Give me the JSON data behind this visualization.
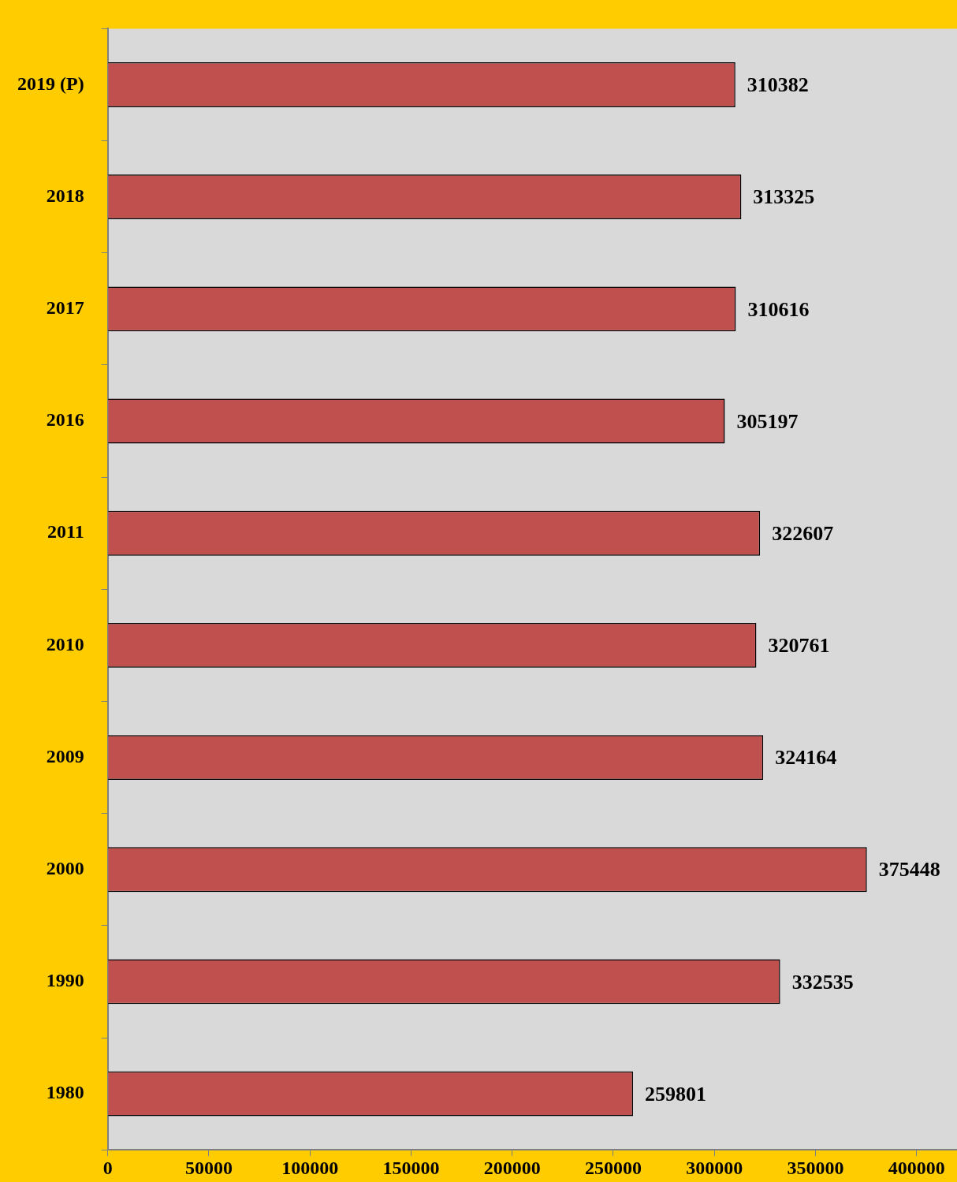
{
  "chart_data": {
    "type": "bar",
    "orientation": "horizontal",
    "categories": [
      "2019 (P)",
      "2018",
      "2017",
      "2016",
      "2011",
      "2010",
      "2009",
      "2000",
      "1990",
      "1980"
    ],
    "values": [
      310382,
      313325,
      310616,
      305197,
      322607,
      320761,
      324164,
      375448,
      332535,
      259801
    ],
    "color": "#c0504d",
    "xlim": [
      0,
      420000
    ],
    "xticks": [
      0,
      50000,
      100000,
      150000,
      200000,
      250000,
      300000,
      350000,
      400000
    ],
    "data_labels": true,
    "grid": false,
    "legend": false
  }
}
